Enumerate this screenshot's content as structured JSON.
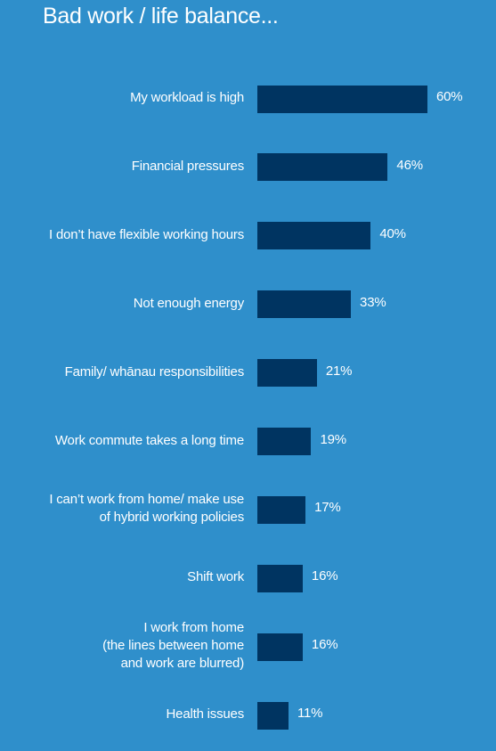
{
  "chart_data": {
    "type": "bar",
    "orientation": "horizontal",
    "title": "Bad work / life balance...",
    "categories": [
      "My workload is high",
      "Financial pressures",
      "I don’t have flexible working hours",
      "Not enough energy",
      "Family/ whānau responsibilities",
      "Work commute takes a long time",
      "I can’t work from home/ make use\nof hybrid working policies",
      "Shift work",
      "I work from home\n(the lines between home\nand work are blurred)",
      "Health issues"
    ],
    "values": [
      60,
      46,
      40,
      33,
      21,
      19,
      17,
      16,
      16,
      11
    ],
    "value_labels": [
      "60%",
      "46%",
      "40%",
      "33%",
      "21%",
      "19%",
      "17%",
      "16%",
      "16%",
      "11%"
    ],
    "xlim": [
      0,
      100
    ],
    "unit": "%",
    "grid": false,
    "legend": "none",
    "colors": {
      "background": "#2f8fcb",
      "bar": "#003461",
      "text": "#ffffff"
    }
  }
}
